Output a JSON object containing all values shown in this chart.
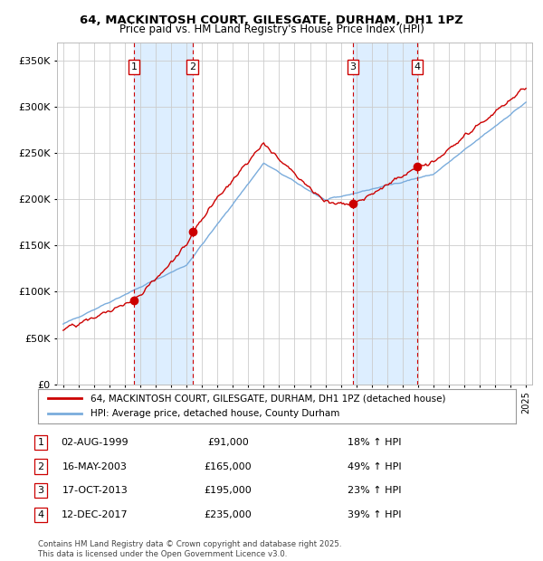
{
  "title_line1": "64, MACKINTOSH COURT, GILESGATE, DURHAM, DH1 1PZ",
  "title_line2": "Price paid vs. HM Land Registry's House Price Index (HPI)",
  "yticks": [
    0,
    50000,
    100000,
    150000,
    200000,
    250000,
    300000,
    350000
  ],
  "ytick_labels": [
    "£0",
    "£50K",
    "£100K",
    "£150K",
    "£200K",
    "£250K",
    "£300K",
    "£350K"
  ],
  "sale_prices": [
    91000,
    165000,
    195000,
    235000
  ],
  "sale_labels": [
    "1",
    "2",
    "3",
    "4"
  ],
  "sale_hpi_pct": [
    "18% ↑ HPI",
    "49% ↑ HPI",
    "23% ↑ HPI",
    "39% ↑ HPI"
  ],
  "sale_dates_display": [
    "02-AUG-1999",
    "16-MAY-2003",
    "17-OCT-2013",
    "12-DEC-2017"
  ],
  "sale_prices_display": [
    "£91,000",
    "£165,000",
    "£195,000",
    "£235,000"
  ],
  "hpi_color": "#7aacdc",
  "price_color": "#cc0000",
  "background_color": "#ffffff",
  "grid_color": "#cccccc",
  "shade_color": "#ddeeff",
  "legend_line1": "64, MACKINTOSH COURT, GILESGATE, DURHAM, DH1 1PZ (detached house)",
  "legend_line2": "HPI: Average price, detached house, County Durham",
  "footer": "Contains HM Land Registry data © Crown copyright and database right 2025.\nThis data is licensed under the Open Government Licence v3.0."
}
